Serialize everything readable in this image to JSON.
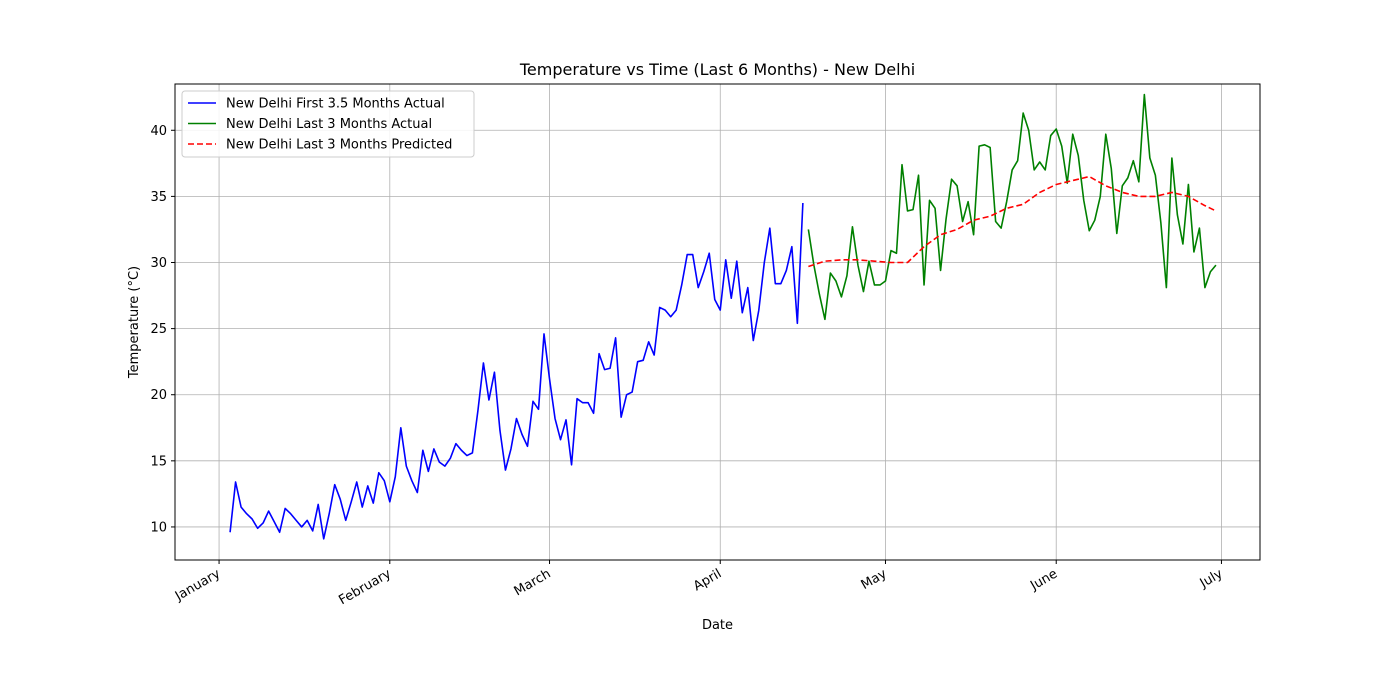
{
  "chart_data": {
    "type": "line",
    "title": "Temperature vs Time (Last 6 Months) - New Delhi",
    "xlabel": "Date",
    "ylabel": "Temperature (°C)",
    "x_axis_type": "date",
    "xlim": [
      "2023-12-24",
      "2024-07-08"
    ],
    "ylim": [
      7.5,
      43.5
    ],
    "x_ticks": [
      {
        "date": "2024-01-01",
        "label": "January"
      },
      {
        "date": "2024-02-01",
        "label": "February"
      },
      {
        "date": "2024-03-01",
        "label": "March"
      },
      {
        "date": "2024-04-01",
        "label": "April"
      },
      {
        "date": "2024-05-01",
        "label": "May"
      },
      {
        "date": "2024-06-01",
        "label": "June"
      },
      {
        "date": "2024-07-01",
        "label": "July"
      }
    ],
    "y_ticks": [
      10,
      15,
      20,
      25,
      30,
      35,
      40
    ],
    "grid": true,
    "legend_position": "top-left",
    "series": [
      {
        "name": "New Delhi First 3.5 Months Actual",
        "color": "#0000ff",
        "style": "solid",
        "points": [
          [
            "2024-01-03",
            9.6
          ],
          [
            "2024-01-04",
            13.4
          ],
          [
            "2024-01-05",
            11.5
          ],
          [
            "2024-01-06",
            11.0
          ],
          [
            "2024-01-07",
            10.6
          ],
          [
            "2024-01-08",
            9.9
          ],
          [
            "2024-01-09",
            10.3
          ],
          [
            "2024-01-10",
            11.2
          ],
          [
            "2024-01-11",
            10.4
          ],
          [
            "2024-01-12",
            9.6
          ],
          [
            "2024-01-13",
            11.4
          ],
          [
            "2024-01-14",
            11.0
          ],
          [
            "2024-01-15",
            10.5
          ],
          [
            "2024-01-16",
            10.0
          ],
          [
            "2024-01-17",
            10.5
          ],
          [
            "2024-01-18",
            9.7
          ],
          [
            "2024-01-19",
            11.7
          ],
          [
            "2024-01-20",
            9.1
          ],
          [
            "2024-01-21",
            11.0
          ],
          [
            "2024-01-22",
            13.2
          ],
          [
            "2024-01-23",
            12.1
          ],
          [
            "2024-01-24",
            10.5
          ],
          [
            "2024-01-25",
            11.9
          ],
          [
            "2024-01-26",
            13.4
          ],
          [
            "2024-01-27",
            11.5
          ],
          [
            "2024-01-28",
            13.1
          ],
          [
            "2024-01-29",
            11.8
          ],
          [
            "2024-01-30",
            14.1
          ],
          [
            "2024-01-31",
            13.5
          ],
          [
            "2024-02-01",
            11.9
          ],
          [
            "2024-02-02",
            13.8
          ],
          [
            "2024-02-03",
            17.5
          ],
          [
            "2024-02-04",
            14.6
          ],
          [
            "2024-02-05",
            13.5
          ],
          [
            "2024-02-06",
            12.6
          ],
          [
            "2024-02-07",
            15.8
          ],
          [
            "2024-02-08",
            14.2
          ],
          [
            "2024-02-09",
            15.9
          ],
          [
            "2024-02-10",
            14.9
          ],
          [
            "2024-02-11",
            14.6
          ],
          [
            "2024-02-12",
            15.2
          ],
          [
            "2024-02-13",
            16.3
          ],
          [
            "2024-02-14",
            15.8
          ],
          [
            "2024-02-15",
            15.4
          ],
          [
            "2024-02-16",
            15.6
          ],
          [
            "2024-02-17",
            18.8
          ],
          [
            "2024-02-18",
            22.4
          ],
          [
            "2024-02-19",
            19.6
          ],
          [
            "2024-02-20",
            21.7
          ],
          [
            "2024-02-21",
            17.3
          ],
          [
            "2024-02-22",
            14.3
          ],
          [
            "2024-02-23",
            15.9
          ],
          [
            "2024-02-24",
            18.2
          ],
          [
            "2024-02-25",
            17.0
          ],
          [
            "2024-02-26",
            16.1
          ],
          [
            "2024-02-27",
            19.5
          ],
          [
            "2024-02-28",
            18.9
          ],
          [
            "2024-02-29",
            24.6
          ],
          [
            "2024-03-01",
            21.2
          ],
          [
            "2024-03-02",
            18.2
          ],
          [
            "2024-03-03",
            16.6
          ],
          [
            "2024-03-04",
            18.1
          ],
          [
            "2024-03-05",
            14.7
          ],
          [
            "2024-03-06",
            19.7
          ],
          [
            "2024-03-07",
            19.4
          ],
          [
            "2024-03-08",
            19.4
          ],
          [
            "2024-03-09",
            18.6
          ],
          [
            "2024-03-10",
            23.1
          ],
          [
            "2024-03-11",
            21.9
          ],
          [
            "2024-03-12",
            22.0
          ],
          [
            "2024-03-13",
            24.3
          ],
          [
            "2024-03-14",
            18.3
          ],
          [
            "2024-03-15",
            20.0
          ],
          [
            "2024-03-16",
            20.2
          ],
          [
            "2024-03-17",
            22.5
          ],
          [
            "2024-03-18",
            22.6
          ],
          [
            "2024-03-19",
            24.0
          ],
          [
            "2024-03-20",
            23.0
          ],
          [
            "2024-03-21",
            26.6
          ],
          [
            "2024-03-22",
            26.4
          ],
          [
            "2024-03-23",
            25.9
          ],
          [
            "2024-03-24",
            26.4
          ],
          [
            "2024-03-25",
            28.3
          ],
          [
            "2024-03-26",
            30.6
          ],
          [
            "2024-03-27",
            30.6
          ],
          [
            "2024-03-28",
            28.1
          ],
          [
            "2024-03-29",
            29.3
          ],
          [
            "2024-03-30",
            30.7
          ],
          [
            "2024-03-31",
            27.2
          ],
          [
            "2024-04-01",
            26.4
          ],
          [
            "2024-04-02",
            30.2
          ],
          [
            "2024-04-03",
            27.3
          ],
          [
            "2024-04-04",
            30.1
          ],
          [
            "2024-04-05",
            26.2
          ],
          [
            "2024-04-06",
            28.1
          ],
          [
            "2024-04-07",
            24.1
          ],
          [
            "2024-04-08",
            26.4
          ],
          [
            "2024-04-09",
            30.0
          ],
          [
            "2024-04-10",
            32.6
          ],
          [
            "2024-04-11",
            28.4
          ],
          [
            "2024-04-12",
            28.4
          ],
          [
            "2024-04-13",
            29.4
          ],
          [
            "2024-04-14",
            31.2
          ],
          [
            "2024-04-15",
            25.4
          ],
          [
            "2024-04-16",
            34.5
          ]
        ]
      },
      {
        "name": "New Delhi Last 3 Months Actual",
        "color": "#008000",
        "style": "solid",
        "points": [
          [
            "2024-04-17",
            32.5
          ],
          [
            "2024-04-18",
            29.8
          ],
          [
            "2024-04-19",
            27.6
          ],
          [
            "2024-04-20",
            25.7
          ],
          [
            "2024-04-21",
            29.2
          ],
          [
            "2024-04-22",
            28.6
          ],
          [
            "2024-04-23",
            27.4
          ],
          [
            "2024-04-24",
            29.0
          ],
          [
            "2024-04-25",
            32.7
          ],
          [
            "2024-04-26",
            29.8
          ],
          [
            "2024-04-27",
            27.8
          ],
          [
            "2024-04-28",
            30.1
          ],
          [
            "2024-04-29",
            28.3
          ],
          [
            "2024-04-30",
            28.3
          ],
          [
            "2024-05-01",
            28.6
          ],
          [
            "2024-05-02",
            30.9
          ],
          [
            "2024-05-03",
            30.7
          ],
          [
            "2024-05-04",
            37.4
          ],
          [
            "2024-05-05",
            33.9
          ],
          [
            "2024-05-06",
            34.0
          ],
          [
            "2024-05-07",
            36.6
          ],
          [
            "2024-05-08",
            28.3
          ],
          [
            "2024-05-09",
            34.7
          ],
          [
            "2024-05-10",
            34.1
          ],
          [
            "2024-05-11",
            29.4
          ],
          [
            "2024-05-12",
            33.3
          ],
          [
            "2024-05-13",
            36.3
          ],
          [
            "2024-05-14",
            35.8
          ],
          [
            "2024-05-15",
            33.1
          ],
          [
            "2024-05-16",
            34.6
          ],
          [
            "2024-05-17",
            32.1
          ],
          [
            "2024-05-18",
            38.8
          ],
          [
            "2024-05-19",
            38.9
          ],
          [
            "2024-05-20",
            38.7
          ],
          [
            "2024-05-21",
            33.1
          ],
          [
            "2024-05-22",
            32.6
          ],
          [
            "2024-05-23",
            34.6
          ],
          [
            "2024-05-24",
            37.0
          ],
          [
            "2024-05-25",
            37.7
          ],
          [
            "2024-05-26",
            41.3
          ],
          [
            "2024-05-27",
            40.0
          ],
          [
            "2024-05-28",
            37.0
          ],
          [
            "2024-05-29",
            37.6
          ],
          [
            "2024-05-30",
            37.0
          ],
          [
            "2024-05-31",
            39.6
          ],
          [
            "2024-06-01",
            40.1
          ],
          [
            "2024-06-02",
            38.8
          ],
          [
            "2024-06-03",
            36.0
          ],
          [
            "2024-06-04",
            39.7
          ],
          [
            "2024-06-05",
            38.1
          ],
          [
            "2024-06-06",
            34.7
          ],
          [
            "2024-06-07",
            32.4
          ],
          [
            "2024-06-08",
            33.2
          ],
          [
            "2024-06-09",
            35.0
          ],
          [
            "2024-06-10",
            39.7
          ],
          [
            "2024-06-11",
            37.1
          ],
          [
            "2024-06-12",
            32.2
          ],
          [
            "2024-06-13",
            35.8
          ],
          [
            "2024-06-14",
            36.4
          ],
          [
            "2024-06-15",
            37.7
          ],
          [
            "2024-06-16",
            36.1
          ],
          [
            "2024-06-17",
            42.7
          ],
          [
            "2024-06-18",
            37.9
          ],
          [
            "2024-06-19",
            36.6
          ],
          [
            "2024-06-20",
            33.0
          ],
          [
            "2024-06-21",
            28.1
          ],
          [
            "2024-06-22",
            37.9
          ],
          [
            "2024-06-23",
            33.6
          ],
          [
            "2024-06-24",
            31.4
          ],
          [
            "2024-06-25",
            35.9
          ],
          [
            "2024-06-26",
            30.8
          ],
          [
            "2024-06-27",
            32.6
          ],
          [
            "2024-06-28",
            28.1
          ],
          [
            "2024-06-29",
            29.3
          ],
          [
            "2024-06-30",
            29.8
          ]
        ]
      },
      {
        "name": "New Delhi Last 3 Months Predicted",
        "color": "#ff0000",
        "style": "dashed",
        "points": [
          [
            "2024-04-17",
            29.7
          ],
          [
            "2024-04-20",
            30.1
          ],
          [
            "2024-04-23",
            30.2
          ],
          [
            "2024-04-26",
            30.2
          ],
          [
            "2024-04-29",
            30.1
          ],
          [
            "2024-05-02",
            30.0
          ],
          [
            "2024-05-05",
            30.0
          ],
          [
            "2024-05-08",
            31.2
          ],
          [
            "2024-05-11",
            32.1
          ],
          [
            "2024-05-14",
            32.5
          ],
          [
            "2024-05-17",
            33.2
          ],
          [
            "2024-05-20",
            33.5
          ],
          [
            "2024-05-23",
            34.1
          ],
          [
            "2024-05-26",
            34.4
          ],
          [
            "2024-05-29",
            35.3
          ],
          [
            "2024-06-01",
            35.9
          ],
          [
            "2024-06-04",
            36.2
          ],
          [
            "2024-06-07",
            36.5
          ],
          [
            "2024-06-10",
            35.8
          ],
          [
            "2024-06-13",
            35.3
          ],
          [
            "2024-06-16",
            35.0
          ],
          [
            "2024-06-19",
            35.0
          ],
          [
            "2024-06-22",
            35.3
          ],
          [
            "2024-06-25",
            35.0
          ],
          [
            "2024-06-28",
            34.3
          ],
          [
            "2024-06-30",
            33.9
          ]
        ]
      }
    ]
  }
}
